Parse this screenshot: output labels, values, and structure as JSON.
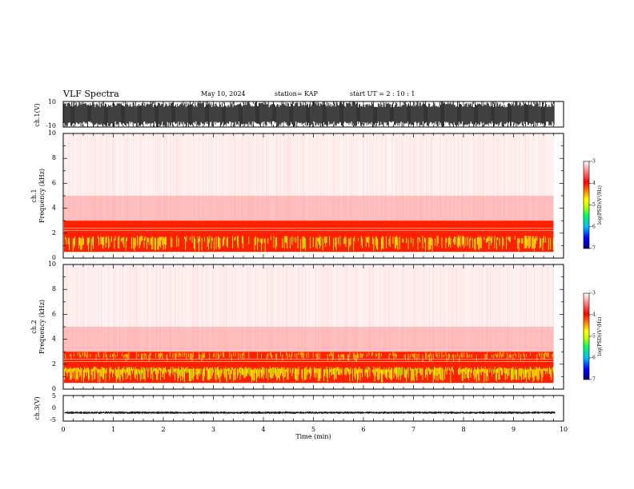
{
  "header": {
    "title": "VLF Spectra",
    "date": "May 10, 2024",
    "station": "station= KAP",
    "start": "start  UT =   2  : 10 : 1"
  },
  "chart_data": [
    {
      "type": "line",
      "name": "ch1-waveform",
      "ylabel": "ch.1(V)",
      "ylim": [
        -10,
        10
      ],
      "ytick_labels": [
        "10",
        "-10"
      ],
      "xlim": [
        0,
        10
      ]
    },
    {
      "type": "heatmap",
      "name": "ch1-spectrogram",
      "ylabel_lines": [
        "ch.1",
        "Frequency  (kHz)"
      ],
      "ylim": [
        0,
        10
      ],
      "yticks": [
        "0",
        "2",
        "4",
        "6",
        "8",
        "10"
      ],
      "xlim": [
        0,
        9.8
      ],
      "band_khz": [
        0.5,
        3.0
      ],
      "colorbar": {
        "label": "log(PSD)(V²/Hz)",
        "range": [
          -7,
          -3
        ],
        "ticks": [
          "-3",
          "-4",
          "-5",
          "-6",
          "-7"
        ],
        "colors": [
          "#000080",
          "#0000ff",
          "#00c0ff",
          "#00ff60",
          "#c0ff00",
          "#ffff00",
          "#ff8000",
          "#ff0000",
          "#ffffff"
        ]
      }
    },
    {
      "type": "heatmap",
      "name": "ch2-spectrogram",
      "ylabel_lines": [
        "ch.2",
        "Frequency  (kHz)"
      ],
      "ylim": [
        0,
        10
      ],
      "yticks": [
        "0",
        "2",
        "4",
        "6",
        "8",
        "10"
      ],
      "xlim": [
        0,
        9.8
      ],
      "band_khz": [
        0.5,
        3.0
      ],
      "colorbar": {
        "label": "log(PSD)(V²/Hz)",
        "range": [
          -7,
          -3
        ],
        "ticks": [
          "-3",
          "-4",
          "-5",
          "-6",
          "-7"
        ],
        "colors": [
          "#000080",
          "#0000ff",
          "#00c0ff",
          "#00ff60",
          "#c0ff00",
          "#ffff00",
          "#ff8000",
          "#ff0000",
          "#ffffff"
        ]
      }
    },
    {
      "type": "line",
      "name": "ch3-waveform",
      "ylabel": "ch.3(V)",
      "ylim": [
        -5,
        5
      ],
      "ytick_labels": [
        "5",
        "0",
        "-5"
      ],
      "xlim": [
        0,
        10
      ],
      "xlabel": "Time  (min)",
      "xticks": [
        "0",
        "1",
        "2",
        "3",
        "4",
        "5",
        "6",
        "7",
        "8",
        "9",
        "10"
      ]
    }
  ]
}
